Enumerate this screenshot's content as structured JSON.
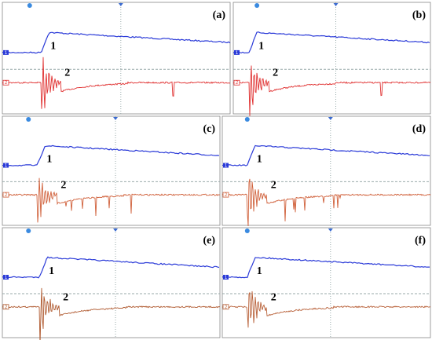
{
  "panels": [
    {
      "label": "(a)",
      "trace_labels": [
        "1",
        "2"
      ]
    },
    {
      "label": "(b)",
      "trace_labels": [
        "1",
        "2"
      ]
    },
    {
      "label": "(c)",
      "trace_labels": [
        "1",
        "2"
      ]
    },
    {
      "label": "(d)",
      "trace_labels": [
        "1",
        "2"
      ]
    },
    {
      "label": "(e)",
      "trace_labels": [
        "1",
        "2"
      ]
    },
    {
      "label": "(f)",
      "trace_labels": [
        "1",
        "2"
      ]
    }
  ]
}
